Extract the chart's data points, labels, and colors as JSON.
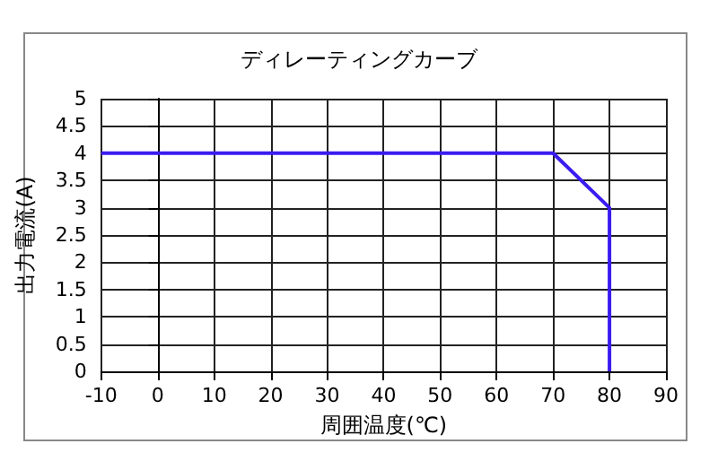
{
  "chart_data": {
    "type": "line",
    "title": "ディレーティングカーブ",
    "xlabel": "周囲温度(℃)",
    "ylabel": "出力電流(A)",
    "series": [
      {
        "color": "#3a1cf0",
        "x": [
          -10,
          70,
          80,
          80
        ],
        "values": [
          4,
          4,
          3,
          0
        ]
      }
    ],
    "xlim": [
      -10,
      90
    ],
    "xticks": [
      -10,
      0,
      10,
      20,
      30,
      40,
      50,
      60,
      70,
      80,
      90
    ],
    "ylim": [
      0,
      5
    ],
    "yticks": [
      0,
      0.5,
      1,
      1.5,
      2,
      2.5,
      3,
      3.5,
      4,
      4.5,
      5
    ],
    "grid": true,
    "marker": "none",
    "line_style": "solid"
  }
}
